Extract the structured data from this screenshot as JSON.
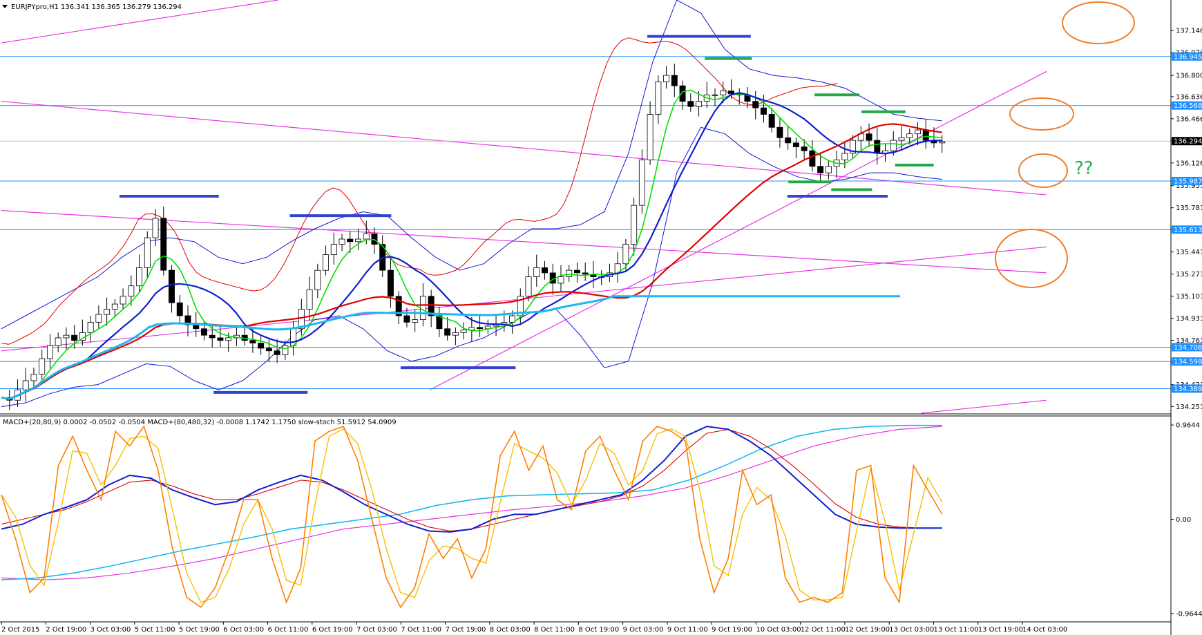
{
  "chart_data": {
    "type": "candlestick",
    "main": {
      "header": "EURJPYpro,H1  136.341 136.365 136.279 136.294",
      "ylim": [
        134.2,
        137.38
      ],
      "y_ticks": [
        "137.146",
        "136.976",
        "136.800",
        "136.636",
        "136.466",
        "136.296",
        "136.126",
        "135.951",
        "135.781",
        "135.611",
        "135.441",
        "135.271",
        "135.101",
        "134.931",
        "134.761",
        "134.591",
        "134.421",
        "134.251"
      ],
      "current_price": "136.294",
      "hlines": [
        {
          "label": "136.945",
          "value": 136.945
        },
        {
          "label": "136.568",
          "value": 136.568
        },
        {
          "label": "135.987",
          "value": 135.987
        },
        {
          "label": "135.613",
          "value": 135.613
        },
        {
          "label": "134.708",
          "value": 134.708
        },
        {
          "label": "134.598",
          "value": 134.598
        },
        {
          "label": "134.389",
          "value": 134.389
        }
      ],
      "price_series": [
        134.32,
        134.3,
        134.38,
        134.45,
        134.5,
        134.62,
        134.72,
        134.78,
        134.8,
        134.76,
        134.82,
        134.9,
        134.96,
        135.0,
        135.04,
        135.1,
        135.18,
        135.32,
        135.55,
        135.7,
        135.3,
        135.05,
        134.95,
        134.88,
        134.85,
        134.8,
        134.78,
        134.76,
        134.78,
        134.8,
        134.76,
        134.74,
        134.7,
        134.68,
        134.65,
        134.72,
        134.85,
        135.0,
        135.15,
        135.3,
        135.42,
        135.5,
        135.54,
        135.52,
        135.54,
        135.58,
        135.5,
        135.3,
        135.1,
        134.95,
        134.9,
        134.92,
        135.1,
        134.95,
        134.85,
        134.8,
        134.82,
        134.84,
        134.86,
        134.85,
        134.87,
        134.88,
        134.9,
        134.95,
        135.1,
        135.25,
        135.32,
        135.28,
        135.2,
        135.25,
        135.3,
        135.28,
        135.27,
        135.25,
        135.25,
        135.28,
        135.35,
        135.5,
        135.8,
        136.15,
        136.5,
        136.75,
        136.8,
        136.72,
        136.6,
        136.56,
        136.6,
        136.65,
        136.65,
        136.68,
        136.66,
        136.65,
        136.6,
        136.55,
        136.5,
        136.4,
        136.32,
        136.28,
        136.25,
        136.22,
        136.1,
        136.05,
        136.1,
        136.15,
        136.2,
        136.3,
        136.35,
        136.3,
        136.2,
        136.22,
        136.3,
        136.32,
        136.35,
        136.38,
        136.3,
        136.28,
        136.29
      ],
      "bollinger_upper": [
        134.85,
        134.95,
        135.05,
        135.15,
        135.25,
        135.4,
        135.52,
        135.55,
        135.52,
        135.4,
        135.35,
        135.4,
        135.52,
        135.62,
        135.7,
        135.75,
        135.72,
        135.55,
        135.4,
        135.3,
        135.35,
        135.5,
        135.62,
        135.62,
        135.65,
        135.75,
        136.2,
        136.9,
        137.38,
        137.28,
        137.0,
        136.85,
        136.8,
        136.78,
        136.75,
        136.7,
        136.6,
        136.5,
        136.47,
        136.45
      ],
      "bollinger_lower": [
        134.25,
        134.28,
        134.35,
        134.4,
        134.42,
        134.5,
        134.58,
        134.56,
        134.45,
        134.38,
        134.45,
        134.6,
        134.78,
        134.92,
        134.95,
        134.85,
        134.68,
        134.6,
        134.64,
        134.72,
        134.78,
        134.88,
        134.98,
        135.0,
        134.8,
        134.55,
        134.6,
        135.2,
        136.05,
        136.4,
        136.35,
        136.2,
        136.1,
        136.02,
        135.98,
        136.0,
        136.05,
        136.05,
        136.02,
        136.0
      ],
      "blue_horizontal_levels": [
        {
          "value": 135.87,
          "x0": 0.113,
          "x1": 0.208
        },
        {
          "value": 135.72,
          "x0": 0.276,
          "x1": 0.373
        },
        {
          "value": 134.36,
          "x0": 0.203,
          "x1": 0.293
        },
        {
          "value": 134.55,
          "x0": 0.382,
          "x1": 0.492
        },
        {
          "value": 137.1,
          "x0": 0.618,
          "x1": 0.717
        },
        {
          "value": 135.87,
          "x0": 0.752,
          "x1": 0.848
        }
      ],
      "green_horizontal_levels": [
        {
          "value": 136.93,
          "x0": 0.673,
          "x1": 0.718
        },
        {
          "value": 136.65,
          "x0": 0.778,
          "x1": 0.821
        },
        {
          "value": 136.52,
          "x0": 0.823,
          "x1": 0.865
        },
        {
          "value": 135.98,
          "x0": 0.753,
          "x1": 0.794
        },
        {
          "value": 135.92,
          "x0": 0.794,
          "x1": 0.833
        },
        {
          "value": 136.11,
          "x0": 0.855,
          "x1": 0.892
        }
      ],
      "annotation_text": "??"
    },
    "indicator": {
      "header": "MACD+(20,80,9) 0.0002 -0.0502 -0.0504  MACD+(80,480,32) -0.0008 1.1742 1.1750  slow-stoch 51.5912 54.0909",
      "y_ticks": [
        "0.9644",
        "0.00",
        "-0.9644"
      ],
      "ylim": [
        -1.05,
        1.05
      ],
      "stoch_k": [
        0.25,
        -0.2,
        -0.75,
        -0.6,
        0.55,
        0.85,
        0.5,
        0.2,
        0.9,
        0.75,
        0.95,
        0.5,
        -0.3,
        -0.8,
        -0.9,
        -0.7,
        -0.3,
        0.2,
        0.2,
        -0.4,
        -0.85,
        -0.5,
        0.8,
        0.9,
        0.95,
        0.6,
        0.0,
        -0.6,
        -0.9,
        -0.7,
        -0.15,
        -0.4,
        -0.2,
        -0.6,
        -0.3,
        0.65,
        0.9,
        0.5,
        0.75,
        0.2,
        0.1,
        0.7,
        0.85,
        0.5,
        0.2,
        0.8,
        0.95,
        0.9,
        0.8,
        -0.2,
        -0.75,
        -0.4,
        0.5,
        0.15,
        0.25,
        -0.6,
        -0.85,
        -0.8,
        -0.85,
        -0.75,
        0.5,
        0.55,
        -0.6,
        -0.85,
        0.55,
        0.3,
        0.05
      ],
      "macd_fast": [
        -0.1,
        -0.05,
        0.05,
        0.12,
        0.2,
        0.35,
        0.45,
        0.42,
        0.3,
        0.22,
        0.15,
        0.18,
        0.3,
        0.38,
        0.45,
        0.4,
        0.28,
        0.15,
        0.05,
        -0.05,
        -0.12,
        -0.13,
        -0.1,
        0.0,
        0.05,
        0.05,
        0.1,
        0.15,
        0.2,
        0.25,
        0.4,
        0.6,
        0.85,
        0.95,
        0.92,
        0.8,
        0.65,
        0.45,
        0.25,
        0.05,
        -0.05,
        -0.08,
        -0.09,
        -0.09,
        -0.09
      ],
      "macd_signal": [
        -0.05,
        0.0,
        0.05,
        0.1,
        0.18,
        0.28,
        0.38,
        0.4,
        0.34,
        0.26,
        0.2,
        0.2,
        0.26,
        0.33,
        0.4,
        0.38,
        0.3,
        0.2,
        0.1,
        0.0,
        -0.08,
        -0.12,
        -0.1,
        -0.05,
        0.0,
        0.05,
        0.1,
        0.14,
        0.18,
        0.24,
        0.34,
        0.5,
        0.7,
        0.88,
        0.92,
        0.85,
        0.72,
        0.55,
        0.36,
        0.16,
        0.02,
        -0.05,
        -0.08,
        -0.09,
        -0.09
      ],
      "macd_slow": [
        -0.62,
        -0.6,
        -0.55,
        -0.48,
        -0.4,
        -0.32,
        -0.25,
        -0.18,
        -0.1,
        -0.05,
        0.0,
        0.05,
        0.14,
        0.2,
        0.24,
        0.25,
        0.26,
        0.27,
        0.3,
        0.4,
        0.55,
        0.72,
        0.85,
        0.92,
        0.95,
        0.96,
        0.96
      ],
      "macd_slow_signal": [
        -0.6,
        -0.62,
        -0.6,
        -0.55,
        -0.48,
        -0.4,
        -0.3,
        -0.2,
        -0.1,
        -0.05,
        0.0,
        0.05,
        0.1,
        0.14,
        0.18,
        0.24,
        0.32,
        0.45,
        0.6,
        0.75,
        0.85,
        0.92,
        0.95
      ]
    },
    "x_ticks": [
      "2 Oct 2015",
      "2 Oct 19:00",
      "3 Oct 03:00",
      "5 Oct 11:00",
      "5 Oct 19:00",
      "6 Oct 03:00",
      "6 Oct 11:00",
      "6 Oct 19:00",
      "7 Oct 03:00",
      "7 Oct 11:00",
      "7 Oct 19:00",
      "8 Oct 03:00",
      "8 Oct 11:00",
      "8 Oct 19:00",
      "9 Oct 03:00",
      "9 Oct 11:00",
      "9 Oct 19:00",
      "10 Oct 03:00",
      "12 Oct 11:00",
      "12 Oct 19:00",
      "13 Oct 03:00",
      "13 Oct 11:00",
      "13 Oct 19:00",
      "14 Oct 03:00"
    ],
    "grid": false,
    "colors": {
      "bollinger": "#1515d4",
      "ma_fast": "#00e000",
      "ma_mid": "#0b1fcf",
      "ma_slow": "#e00000",
      "ma_long": "#1ab7f0",
      "trend": "#e535e5",
      "hline": "#1e90ff",
      "circle": "#f07d28",
      "level_blue": "#3344cc",
      "level_green": "#22a845",
      "stoch_k": "#ff7f00",
      "stoch_d": "#f5c000"
    }
  }
}
